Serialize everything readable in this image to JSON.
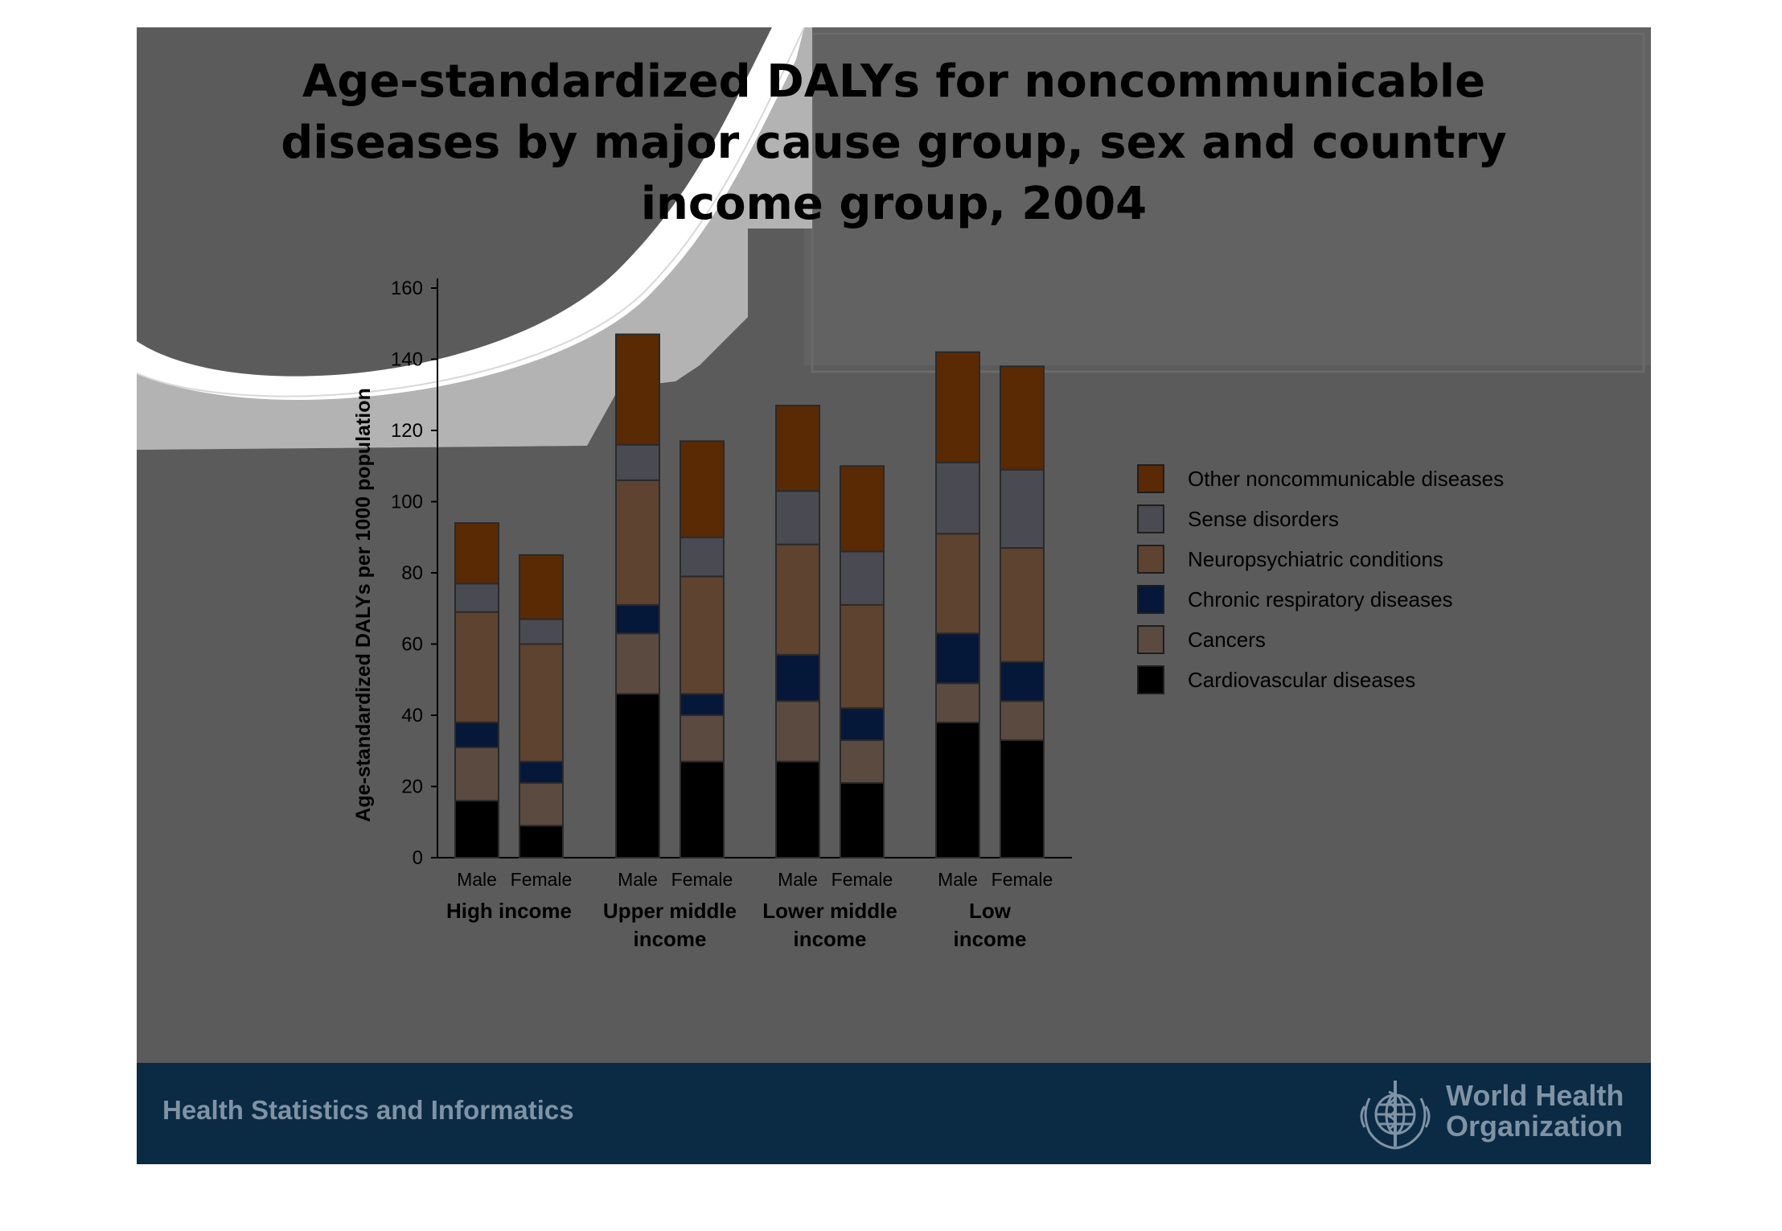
{
  "title_lines": [
    "Age-standardized DALYs for noncommunicable",
    "diseases by major cause group,  sex and country",
    "income group, 2004"
  ],
  "footer": {
    "left_text": "Health Statistics and Informatics",
    "org_line1": "World Health",
    "org_line2": "Organization",
    "logo_icon": "who-emblem-icon"
  },
  "colors": {
    "slide_background": "#5b5b5b",
    "footer_background": "#0b2a44",
    "footer_text": "#7f93a5"
  },
  "chart_data": {
    "type": "bar",
    "stacked": true,
    "title": "Age-standardized DALYs for noncommunicable diseases by major cause group,  sex and country income group, 2004",
    "ylabel": "Age-standardized DALYs per 1000 population",
    "xlabel": "",
    "ylim": [
      0,
      160
    ],
    "yticks": [
      0,
      20,
      40,
      60,
      80,
      100,
      120,
      140,
      160
    ],
    "grid": false,
    "legend_position": "right",
    "groups": [
      {
        "label": "High income",
        "bars": [
          "Male",
          "Female"
        ]
      },
      {
        "label": "Upper middle income",
        "bars": [
          "Male",
          "Female"
        ]
      },
      {
        "label": "Lower middle income",
        "bars": [
          "Male",
          "Female"
        ]
      },
      {
        "label": "Low income",
        "bars": [
          "Male",
          "Female"
        ]
      }
    ],
    "categories": [
      "Male",
      "Female",
      "Male",
      "Female",
      "Male",
      "Female",
      "Male",
      "Female"
    ],
    "series": [
      {
        "name": "Cardiovascular diseases",
        "color": "#000000",
        "values": [
          16,
          9,
          46,
          27,
          27,
          21,
          38,
          33
        ]
      },
      {
        "name": "Cancers",
        "color": "#5a4a40",
        "values": [
          15,
          12,
          17,
          13,
          17,
          12,
          11,
          11
        ]
      },
      {
        "name": "Chronic respiratory diseases",
        "color": "#06183a",
        "values": [
          7,
          6,
          8,
          6,
          13,
          9,
          14,
          11
        ]
      },
      {
        "name": "Neuropsychiatric conditions",
        "color": "#5e4330",
        "values": [
          31,
          33,
          35,
          33,
          31,
          29,
          28,
          32
        ]
      },
      {
        "name": "Sense disorders",
        "color": "#4a4a52",
        "values": [
          8,
          7,
          10,
          11,
          15,
          15,
          20,
          22
        ]
      },
      {
        "name": "Other noncommunicable diseases",
        "color": "#5a2a04",
        "values": [
          17,
          18,
          31,
          27,
          24,
          24,
          31,
          29
        ]
      }
    ]
  }
}
